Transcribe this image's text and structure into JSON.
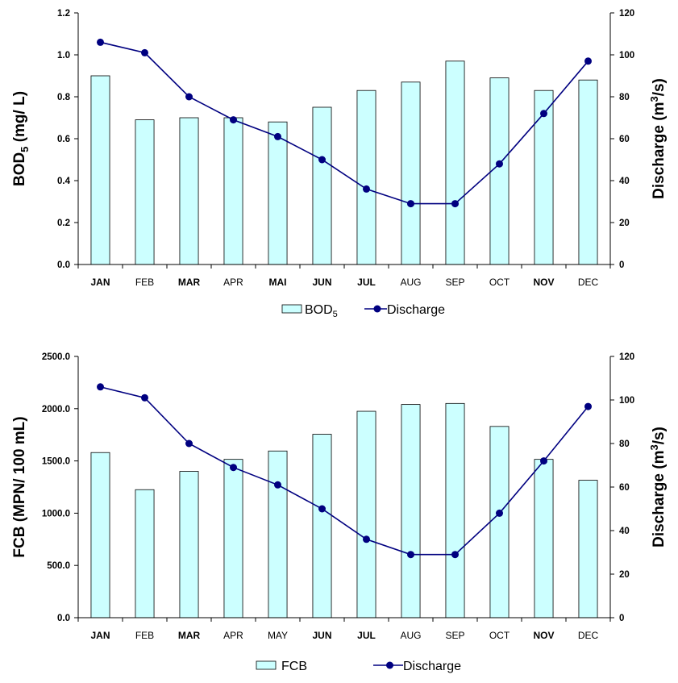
{
  "chart_data": [
    {
      "type": "bar",
      "categories": [
        "JAN",
        "FEB",
        "MAR",
        "APR",
        "MAI",
        "JUN",
        "JUL",
        "AUG",
        "SEP",
        "OCT",
        "NOV",
        "DEC"
      ],
      "bold_categories": [
        "JAN",
        "MAR",
        "MAI",
        "JUN",
        "JUL",
        "NOV"
      ],
      "series": [
        {
          "name": "BOD5",
          "kind": "bar",
          "axis": "left",
          "color": "#ccffff",
          "values": [
            0.9,
            0.69,
            0.7,
            0.7,
            0.68,
            0.75,
            0.83,
            0.87,
            0.97,
            0.89,
            0.83,
            0.88
          ]
        },
        {
          "name": "Discharge",
          "kind": "line",
          "axis": "right",
          "color": "#000080",
          "values": [
            106,
            101,
            80,
            69,
            61,
            50,
            36,
            29,
            29,
            48,
            72,
            97
          ]
        }
      ],
      "ylabel_left": "BOD5 (mg/ L)",
      "ylabel_left_parts": {
        "main": "BOD",
        "sub": "5",
        "rest": " (mg/ L)"
      },
      "ylabel_right": "Discharge (m3/s)",
      "ylabel_right_parts": {
        "main": "Discharge (m",
        "sup": "3",
        "rest": "/s)"
      },
      "ylim_left": [
        0,
        1.2
      ],
      "yticks_left": [
        "0.0",
        "0.2",
        "0.4",
        "0.6",
        "0.8",
        "1.0",
        "1.2"
      ],
      "ylim_right": [
        0,
        120
      ],
      "yticks_right": [
        "0",
        "20",
        "40",
        "60",
        "80",
        "100",
        "120"
      ],
      "legend": {
        "bar_label": "BOD",
        "bar_label_sub": "5",
        "line_label": "Discharge",
        "placement": "bottom"
      },
      "grid": false
    },
    {
      "type": "bar",
      "categories": [
        "JAN",
        "FEB",
        "MAR",
        "APR",
        "MAY",
        "JUN",
        "JUL",
        "AUG",
        "SEP",
        "OCT",
        "NOV",
        "DEC"
      ],
      "bold_categories": [
        "JAN",
        "MAR",
        "JUN",
        "JUL",
        "NOV"
      ],
      "series": [
        {
          "name": "FCB",
          "kind": "bar",
          "axis": "left",
          "color": "#ccffff",
          "values": [
            1580,
            1225,
            1400,
            1515,
            1595,
            1755,
            1975,
            2040,
            2050,
            1830,
            1515,
            1315
          ]
        },
        {
          "name": "Discharge",
          "kind": "line",
          "axis": "right",
          "color": "#000080",
          "values": [
            106,
            101,
            80,
            69,
            61,
            50,
            36,
            29,
            29,
            48,
            72,
            97
          ]
        }
      ],
      "ylabel_left": "FCB (MPN/ 100 mL)",
      "ylabel_left_parts": {
        "main": "FCB (MPN/ 100 mL)",
        "sub": "",
        "rest": ""
      },
      "ylabel_right": "Discharge (m3/s)",
      "ylabel_right_parts": {
        "main": "Discharge (m",
        "sup": "3",
        "rest": "/s)"
      },
      "ylim_left": [
        0,
        2500
      ],
      "yticks_left": [
        "0.0",
        "500.0",
        "1000.0",
        "1500.0",
        "2000.0",
        "2500.0"
      ],
      "ylim_right": [
        0,
        120
      ],
      "yticks_right": [
        "0",
        "20",
        "40",
        "60",
        "80",
        "100",
        "120"
      ],
      "legend": {
        "bar_label": "FCB",
        "bar_label_sub": "",
        "line_label": "Discharge",
        "placement": "bottom"
      },
      "grid": false
    }
  ]
}
